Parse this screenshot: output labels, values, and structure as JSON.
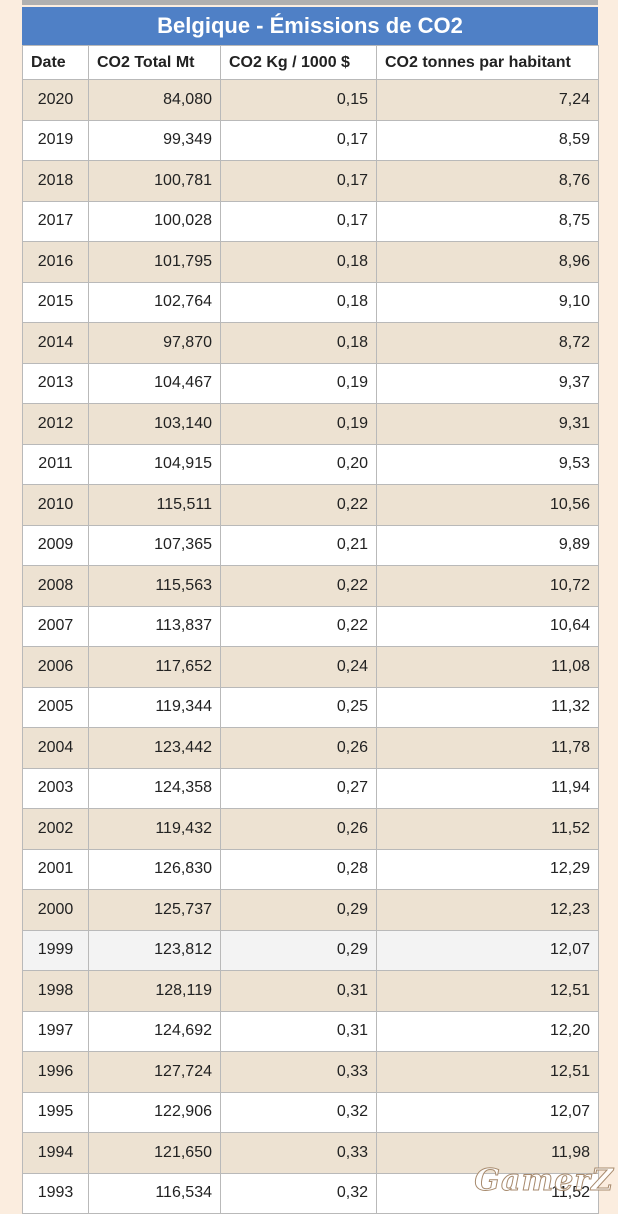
{
  "title": "Belgique - Émissions de CO2",
  "columns": [
    "Date",
    "CO2 Total Mt",
    "CO2 Kg / 1000 $",
    "CO2 tonnes par habitant"
  ],
  "rows": [
    [
      "2020",
      "84,080",
      "0,15",
      "7,24"
    ],
    [
      "2019",
      "99,349",
      "0,17",
      "8,59"
    ],
    [
      "2018",
      "100,781",
      "0,17",
      "8,76"
    ],
    [
      "2017",
      "100,028",
      "0,17",
      "8,75"
    ],
    [
      "2016",
      "101,795",
      "0,18",
      "8,96"
    ],
    [
      "2015",
      "102,764",
      "0,18",
      "9,10"
    ],
    [
      "2014",
      "97,870",
      "0,18",
      "8,72"
    ],
    [
      "2013",
      "104,467",
      "0,19",
      "9,37"
    ],
    [
      "2012",
      "103,140",
      "0,19",
      "9,31"
    ],
    [
      "2011",
      "104,915",
      "0,20",
      "9,53"
    ],
    [
      "2010",
      "115,511",
      "0,22",
      "10,56"
    ],
    [
      "2009",
      "107,365",
      "0,21",
      "9,89"
    ],
    [
      "2008",
      "115,563",
      "0,22",
      "10,72"
    ],
    [
      "2007",
      "113,837",
      "0,22",
      "10,64"
    ],
    [
      "2006",
      "117,652",
      "0,24",
      "11,08"
    ],
    [
      "2005",
      "119,344",
      "0,25",
      "11,32"
    ],
    [
      "2004",
      "123,442",
      "0,26",
      "11,78"
    ],
    [
      "2003",
      "124,358",
      "0,27",
      "11,94"
    ],
    [
      "2002",
      "119,432",
      "0,26",
      "11,52"
    ],
    [
      "2001",
      "126,830",
      "0,28",
      "12,29"
    ],
    [
      "2000",
      "125,737",
      "0,29",
      "12,23"
    ],
    [
      "1999",
      "123,812",
      "0,29",
      "12,07"
    ],
    [
      "1998",
      "128,119",
      "0,31",
      "12,51"
    ],
    [
      "1997",
      "124,692",
      "0,31",
      "12,20"
    ],
    [
      "1996",
      "127,724",
      "0,33",
      "12,51"
    ],
    [
      "1995",
      "122,906",
      "0,32",
      "12,07"
    ],
    [
      "1994",
      "121,650",
      "0,33",
      "11,98"
    ],
    [
      "1993",
      "116,534",
      "0,32",
      "11,52"
    ]
  ],
  "highlighted_year": "1999",
  "watermark": "GamerZ",
  "colors": {
    "title_bar": "#4f80c6",
    "page_background": "#fbeddf",
    "row_alt": "#ede2d2",
    "row_highlight": "#f3f3f3"
  }
}
